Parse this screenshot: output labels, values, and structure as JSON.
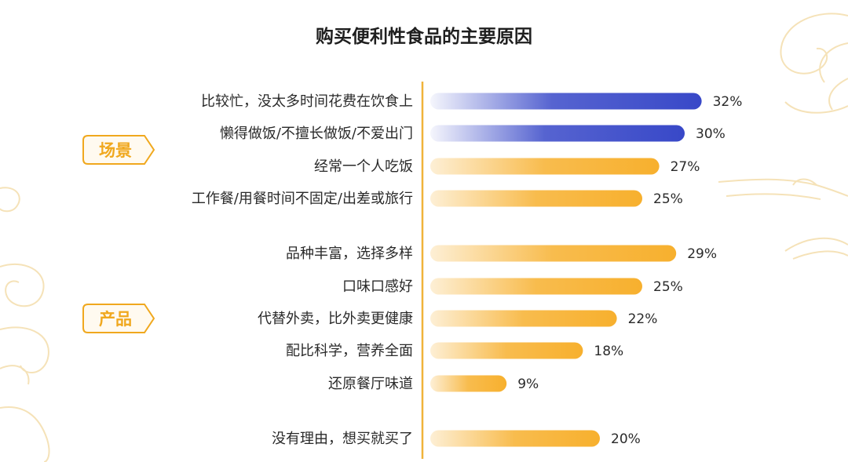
{
  "colors": {
    "highlight": "#3848c8",
    "normal": "#f7b02e",
    "axis": "#f0b33a",
    "decoration": "#f5e2b8"
  },
  "chart_data": {
    "type": "bar",
    "orientation": "horizontal",
    "title": "购买便利性食品的主要原因",
    "xlabel": "",
    "ylabel": "",
    "xlim": [
      0,
      32
    ],
    "grid": false,
    "categories": [
      "比较忙，没太多时间花费在饮食上",
      "懒得做饭/不擅长做饭/不爱出门",
      "经常一个人吃饭",
      "工作餐/用餐时间不固定/出差或旅行",
      "品种丰富，选择多样",
      "口味口感好",
      "代替外卖，比外卖更健康",
      "配比科学，营养全面",
      "还原餐厅味道",
      "没有理由，想买就买了"
    ],
    "values": [
      32,
      30,
      27,
      25,
      29,
      25,
      22,
      18,
      9,
      20
    ],
    "value_labels": [
      "32%",
      "30%",
      "27%",
      "25%",
      "29%",
      "25%",
      "22%",
      "18%",
      "9%",
      "20%"
    ],
    "highlighted": [
      true,
      true,
      false,
      false,
      false,
      false,
      false,
      false,
      false,
      false
    ],
    "groups": [
      {
        "label": "场景",
        "indices": [
          0,
          1,
          2,
          3
        ]
      },
      {
        "label": "产品",
        "indices": [
          4,
          5,
          6,
          7,
          8
        ]
      }
    ]
  }
}
